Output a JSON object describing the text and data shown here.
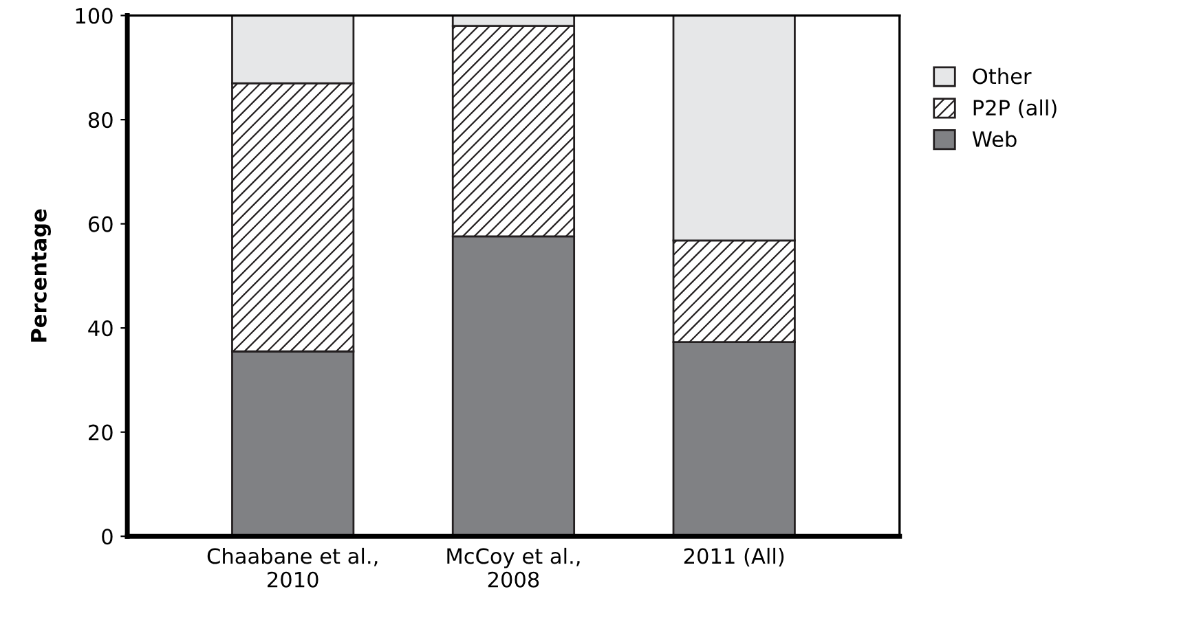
{
  "chart_data": {
    "type": "bar",
    "stacked": true,
    "ylabel": "Percentage",
    "categories": [
      "Chaabane et al.,\n2010",
      "McCoy et al.,\n2008",
      "2011 (All)"
    ],
    "series": [
      {
        "name": "Web",
        "color": "#808184",
        "values": [
          35.5,
          57.6,
          37.3
        ]
      },
      {
        "name": "P2P (all)",
        "color": "#231f20",
        "values": [
          51.5,
          40.4,
          19.5
        ]
      },
      {
        "name": "Other",
        "color": "#e6e7e8",
        "values": [
          13.0,
          2.0,
          43.2
        ]
      }
    ],
    "ylim": [
      0,
      100
    ],
    "yticks": [
      0,
      20,
      40,
      60,
      80,
      100
    ],
    "grid": false,
    "legend": "right"
  }
}
